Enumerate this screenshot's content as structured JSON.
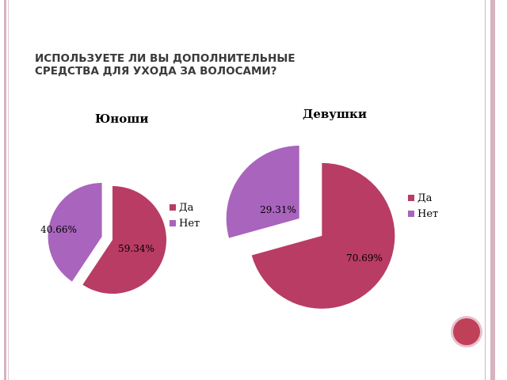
{
  "slide": {
    "title": "ИСПОЛЬЗУЕТЕ ЛИ ВЫ ДОПОЛНИТЕЛЬНЫЕ СРЕДСТВА ДЛЯ УХОДА ЗА ВОЛОСАМИ?"
  },
  "colors": {
    "yes": "#b83c64",
    "no": "#a964bd"
  },
  "chart_data": [
    {
      "type": "pie",
      "title": "Юноши",
      "categories": [
        "Да",
        "Нет"
      ],
      "values": [
        59.34,
        40.66
      ],
      "labels": [
        "59.34%",
        "40.66%"
      ],
      "legend": "right",
      "exploded": true
    },
    {
      "type": "pie",
      "title": "Девушки",
      "categories": [
        "Да",
        "Нет"
      ],
      "values": [
        70.69,
        29.31
      ],
      "labels": [
        "70.69%",
        "29.31%"
      ],
      "legend": "right",
      "exploded": true
    }
  ]
}
